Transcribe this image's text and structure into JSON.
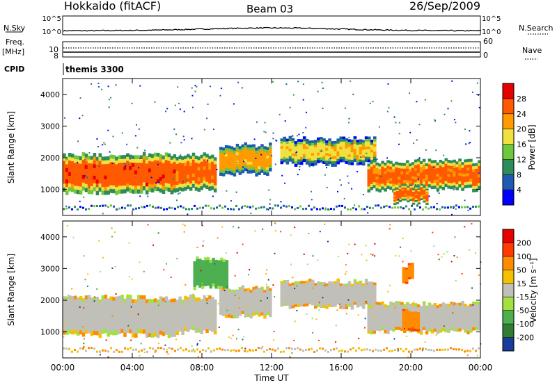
{
  "header": {
    "station": "Hokkaido (fitACF)",
    "beam": "Beam 03",
    "date": "26/Sep/2009"
  },
  "strip": {
    "nsky_label": "N.Sky",
    "nsky_ticks": [
      "10^5",
      "10^0"
    ],
    "nsearch_label": "N.Search",
    "nsearch_ticks": [
      "10^5",
      "10^0"
    ],
    "freq_label": "Freq.",
    "freq_unit": "[MHz]",
    "freq_ticks": [
      "10",
      "8"
    ],
    "nave_label": "Nave",
    "nave_ticks": [
      "60",
      "0"
    ],
    "cpid_label": "CPID",
    "cpid_value": "themis 3300"
  },
  "axes": {
    "ylabel": "Slant Range [km]",
    "xlabel": "Time UT",
    "yticks": [
      "1000",
      "2000",
      "3000",
      "4000"
    ],
    "xticks": [
      "00:00",
      "04:00",
      "08:00",
      "12:00",
      "16:00",
      "20:00",
      "00:00"
    ]
  },
  "power_scale": {
    "label": "Power [dB]",
    "ticks": [
      "4",
      "8",
      "12",
      "16",
      "20",
      "24",
      "28"
    ],
    "colors": [
      "#0000ff",
      "#1e5ab4",
      "#2d8c5a",
      "#6ec83c",
      "#f0e040",
      "#ff9a00",
      "#ff5a00",
      "#e60000"
    ]
  },
  "velocity_scale": {
    "label": "Velocity [m s⁻¹]",
    "ticks": [
      "200",
      "100",
      "50",
      "15",
      "-15",
      "-50",
      "-100",
      "-200"
    ],
    "colors": [
      "#1a3a9c",
      "#2e7d32",
      "#4caf50",
      "#a4e040",
      "#c0c0b8",
      "#f5c000",
      "#ff8c00",
      "#ff3c00",
      "#e60000"
    ]
  },
  "chart_data": [
    {
      "type": "heatmap",
      "title": "Power",
      "xlabel": "Time UT",
      "ylabel": "Slant Range [km]",
      "xlim": [
        "00:00",
        "24:00"
      ],
      "ylim": [
        180,
        4500
      ],
      "colorbar": {
        "label": "Power [dB]",
        "range": [
          0,
          30
        ]
      },
      "bands": [
        {
          "time": [
            "00:00",
            "06:30"
          ],
          "range_km": [
            900,
            2100
          ],
          "level_dB": 28
        },
        {
          "time": [
            "06:30",
            "08:50"
          ],
          "range_km": [
            1000,
            2100
          ],
          "level_dB": 26
        },
        {
          "time": [
            "09:00",
            "12:00"
          ],
          "range_km": [
            1500,
            2400
          ],
          "level_dB": 22
        },
        {
          "time": [
            "12:30",
            "18:00"
          ],
          "range_km": [
            1800,
            2600
          ],
          "level_dB": 20
        },
        {
          "time": [
            "17:30",
            "24:00"
          ],
          "range_km": [
            1000,
            1900
          ],
          "level_dB": 26
        },
        {
          "time": [
            "19:00",
            "21:00"
          ],
          "range_km": [
            600,
            1100
          ],
          "level_dB": 26
        }
      ]
    },
    {
      "type": "heatmap",
      "title": "Velocity",
      "xlabel": "Time UT",
      "ylabel": "Slant Range [km]",
      "xlim": [
        "00:00",
        "24:00"
      ],
      "ylim": [
        180,
        4500
      ],
      "colorbar": {
        "label": "Velocity [m s⁻¹]",
        "range": [
          -200,
          200
        ]
      },
      "bands": [
        {
          "time": [
            "00:00",
            "06:30"
          ],
          "range_km": [
            900,
            2100
          ],
          "velocity": 0
        },
        {
          "time": [
            "06:30",
            "08:50"
          ],
          "range_km": [
            1000,
            2100
          ],
          "velocity": 0
        },
        {
          "time": [
            "09:00",
            "12:00"
          ],
          "range_km": [
            1500,
            2400
          ],
          "velocity": 0
        },
        {
          "time": [
            "12:30",
            "18:00"
          ],
          "range_km": [
            1800,
            2600
          ],
          "velocity": 0
        },
        {
          "time": [
            "17:30",
            "24:00"
          ],
          "range_km": [
            1000,
            1900
          ],
          "velocity": 0
        },
        {
          "time": [
            "19:30",
            "20:30"
          ],
          "range_km": [
            1100,
            1700
          ],
          "velocity": 40
        },
        {
          "time": [
            "19:30",
            "20:10"
          ],
          "range_km": [
            2600,
            3100
          ],
          "velocity": 40
        },
        {
          "time": [
            "07:30",
            "09:30"
          ],
          "range_km": [
            2400,
            3300
          ],
          "velocity": -50
        }
      ]
    }
  ]
}
